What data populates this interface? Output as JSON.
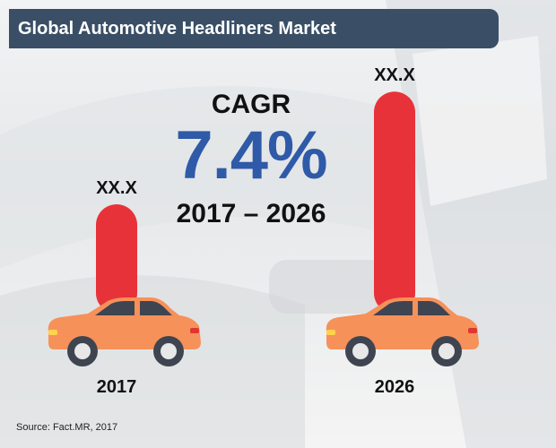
{
  "header": {
    "title": "Global Automotive Headliners Market"
  },
  "cagr": {
    "label": "CAGR",
    "value": "7.4%",
    "range": "2017 – 2026"
  },
  "footer": {
    "source": "Source: Fact.MR, 2017"
  },
  "colors": {
    "bar": "#e8323a",
    "title_bg": "#3a4f66",
    "cagr_text": "#2f5aa8",
    "car_body": "#f6915a",
    "car_dark": "#3f4451"
  },
  "chart_data": {
    "type": "bar",
    "categories": [
      "2017",
      "2026"
    ],
    "value_labels": [
      "XX.X",
      "XX.X"
    ],
    "values": [
      30,
      67
    ],
    "title": "Global Automotive Headliners Market",
    "xlabel": "",
    "ylabel": "",
    "ylim": [
      0,
      70
    ]
  }
}
